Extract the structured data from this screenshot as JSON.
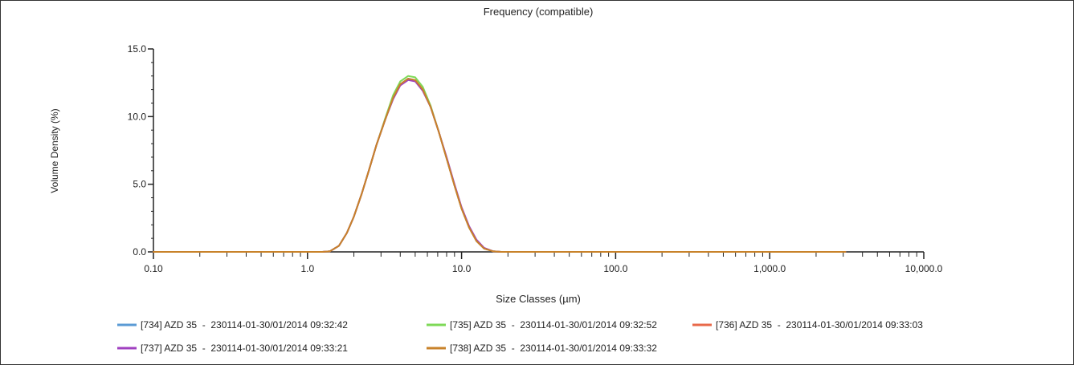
{
  "chart_data": {
    "type": "line",
    "title": "Frequency (compatible)",
    "xlabel": "Size Classes (µm)",
    "ylabel": "Volume Density (%)",
    "x_scale": "log",
    "xlim": [
      0.1,
      10000
    ],
    "ylim": [
      0,
      15
    ],
    "x_ticks": [
      0.1,
      1,
      10,
      100,
      1000,
      10000
    ],
    "x_tick_labels": [
      "0.10",
      "1.0",
      "10.0",
      "100.0",
      "1,000.0",
      "10,000.0"
    ],
    "y_ticks": [
      0,
      5,
      10,
      15
    ],
    "y_tick_labels": [
      "0.0",
      "5.0",
      "10.0",
      "15.0"
    ],
    "grid": false,
    "legend_position": "bottom",
    "x": [
      0.1,
      1.0,
      1.25,
      1.4,
      1.6,
      1.8,
      2.0,
      2.25,
      2.5,
      2.8,
      3.2,
      3.6,
      4.0,
      4.5,
      5.0,
      5.6,
      6.3,
      7.1,
      8.0,
      9.0,
      10.0,
      11.2,
      12.5,
      14.0,
      16.0,
      18.0,
      20.0,
      100.0,
      1000.0,
      3100.0
    ],
    "series": [
      {
        "name": "[734] AZD 35  -  230114-01-30/01/2014 09:32:42",
        "color": "#5b9bd5",
        "values": [
          0,
          0,
          0,
          0.05,
          0.45,
          1.4,
          2.6,
          4.3,
          6.0,
          7.9,
          9.8,
          11.4,
          12.4,
          12.8,
          12.7,
          12.0,
          10.7,
          8.9,
          6.9,
          4.9,
          3.2,
          1.8,
          0.8,
          0.25,
          0.05,
          0,
          0,
          0,
          0,
          0
        ]
      },
      {
        "name": "[735] AZD 35  -  230114-01-30/01/2014 09:32:52",
        "color": "#7ed957",
        "values": [
          0,
          0,
          0,
          0.05,
          0.45,
          1.4,
          2.6,
          4.3,
          6.0,
          7.9,
          9.9,
          11.6,
          12.6,
          13.0,
          12.9,
          12.2,
          10.8,
          8.9,
          6.9,
          4.9,
          3.2,
          1.8,
          0.8,
          0.25,
          0.05,
          0,
          0,
          0,
          0,
          0
        ]
      },
      {
        "name": "[736] AZD 35  -  230114-01-30/01/2014 09:33:03",
        "color": "#e8694a",
        "values": [
          0,
          0,
          0,
          0.05,
          0.45,
          1.4,
          2.6,
          4.3,
          6.0,
          7.9,
          9.8,
          11.4,
          12.4,
          12.8,
          12.7,
          12.0,
          10.7,
          8.9,
          6.9,
          4.9,
          3.2,
          1.8,
          0.8,
          0.25,
          0.05,
          0,
          0,
          0,
          0,
          0
        ]
      },
      {
        "name": "[737] AZD 35  -  230114-01-30/01/2014 09:33:21",
        "color": "#a040c0",
        "values": [
          0,
          0,
          0,
          0.05,
          0.45,
          1.4,
          2.6,
          4.3,
          6.0,
          7.9,
          9.8,
          11.3,
          12.3,
          12.7,
          12.6,
          11.9,
          10.7,
          8.9,
          7.0,
          5.0,
          3.3,
          1.9,
          0.9,
          0.3,
          0.05,
          0,
          0,
          0,
          0,
          0
        ]
      },
      {
        "name": "[738] AZD 35  -  230114-01-30/01/2014 09:33:32",
        "color": "#c8822a",
        "values": [
          0,
          0,
          0,
          0.05,
          0.45,
          1.4,
          2.6,
          4.3,
          6.0,
          7.9,
          9.8,
          11.4,
          12.4,
          12.8,
          12.7,
          12.0,
          10.7,
          8.9,
          6.9,
          4.9,
          3.2,
          1.8,
          0.8,
          0.25,
          0.05,
          0,
          0,
          0,
          0,
          0
        ]
      }
    ]
  }
}
